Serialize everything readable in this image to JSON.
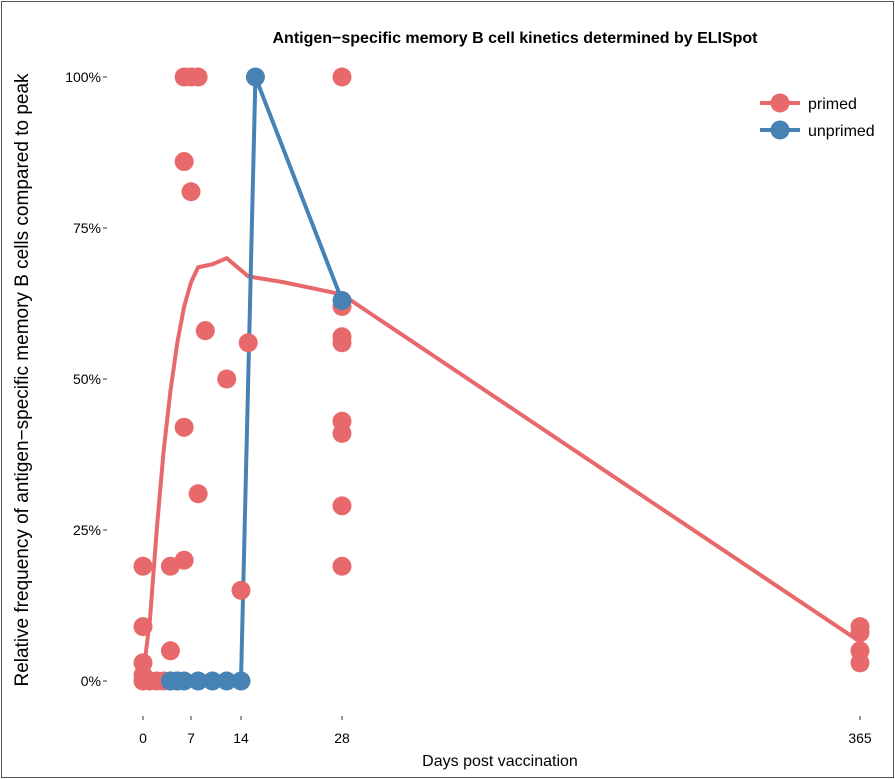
{
  "chart_data": {
    "type": "scatter",
    "title": "Antigen−specific memory B cell kinetics determined by ELISpot",
    "xlabel": "Days post vaccination",
    "ylabel": "Relative frequency of antigen−specific memory B cells compared to peak",
    "x_ticks": [
      0,
      7,
      14,
      28,
      365
    ],
    "y_ticks": [
      {
        "value": 0,
        "label": "0%"
      },
      {
        "value": 0.25,
        "label": "25%"
      },
      {
        "value": 0.5,
        "label": "50%"
      },
      {
        "value": 0.75,
        "label": "75%"
      },
      {
        "value": 1,
        "label": "100%"
      }
    ],
    "legend": {
      "position": "top-right"
    },
    "series": [
      {
        "name": "primed",
        "color": "#E8696B",
        "points": [
          [
            0,
            0
          ],
          [
            0,
            0.01
          ],
          [
            0,
            0.03
          ],
          [
            0,
            0.09
          ],
          [
            0,
            0.19
          ],
          [
            1,
            0
          ],
          [
            2,
            0
          ],
          [
            3,
            0
          ],
          [
            4,
            0
          ],
          [
            4,
            0.05
          ],
          [
            4,
            0.19
          ],
          [
            5,
            0
          ],
          [
            6,
            0.2
          ],
          [
            6,
            0.42
          ],
          [
            6,
            0.86
          ],
          [
            6,
            1.0
          ],
          [
            7,
            1.0
          ],
          [
            7,
            0.81
          ],
          [
            8,
            1.0
          ],
          [
            8,
            0.31
          ],
          [
            9,
            0.58
          ],
          [
            12,
            0.5
          ],
          [
            14,
            0.15
          ],
          [
            15,
            0.56
          ],
          [
            28,
            1.0
          ],
          [
            28,
            0.62
          ],
          [
            28,
            0.57
          ],
          [
            28,
            0.56
          ],
          [
            28,
            0.43
          ],
          [
            28,
            0.41
          ],
          [
            28,
            0.29
          ],
          [
            28,
            0.19
          ],
          [
            365,
            0.03
          ],
          [
            365,
            0.05
          ],
          [
            365,
            0.08
          ],
          [
            365,
            0.09
          ]
        ],
        "trend": [
          [
            0,
            0.01
          ],
          [
            1,
            0.1
          ],
          [
            2,
            0.25
          ],
          [
            3,
            0.38
          ],
          [
            4,
            0.48
          ],
          [
            5,
            0.56
          ],
          [
            6,
            0.62
          ],
          [
            7,
            0.66
          ],
          [
            8,
            0.685
          ],
          [
            10,
            0.69
          ],
          [
            12,
            0.7
          ],
          [
            15,
            0.67
          ],
          [
            20,
            0.66
          ],
          [
            28,
            0.64
          ],
          [
            365,
            0.065
          ]
        ]
      },
      {
        "name": "unprimed",
        "color": "#4682B4",
        "points": [
          [
            4,
            0
          ],
          [
            5,
            0
          ],
          [
            6,
            0
          ],
          [
            8,
            0
          ],
          [
            10,
            0
          ],
          [
            12,
            0
          ],
          [
            14,
            0
          ],
          [
            16,
            1.0
          ],
          [
            28,
            0.63
          ]
        ],
        "trend": [
          [
            4,
            0
          ],
          [
            14,
            0
          ],
          [
            16,
            1.0
          ],
          [
            28,
            0.63
          ]
        ]
      }
    ]
  }
}
